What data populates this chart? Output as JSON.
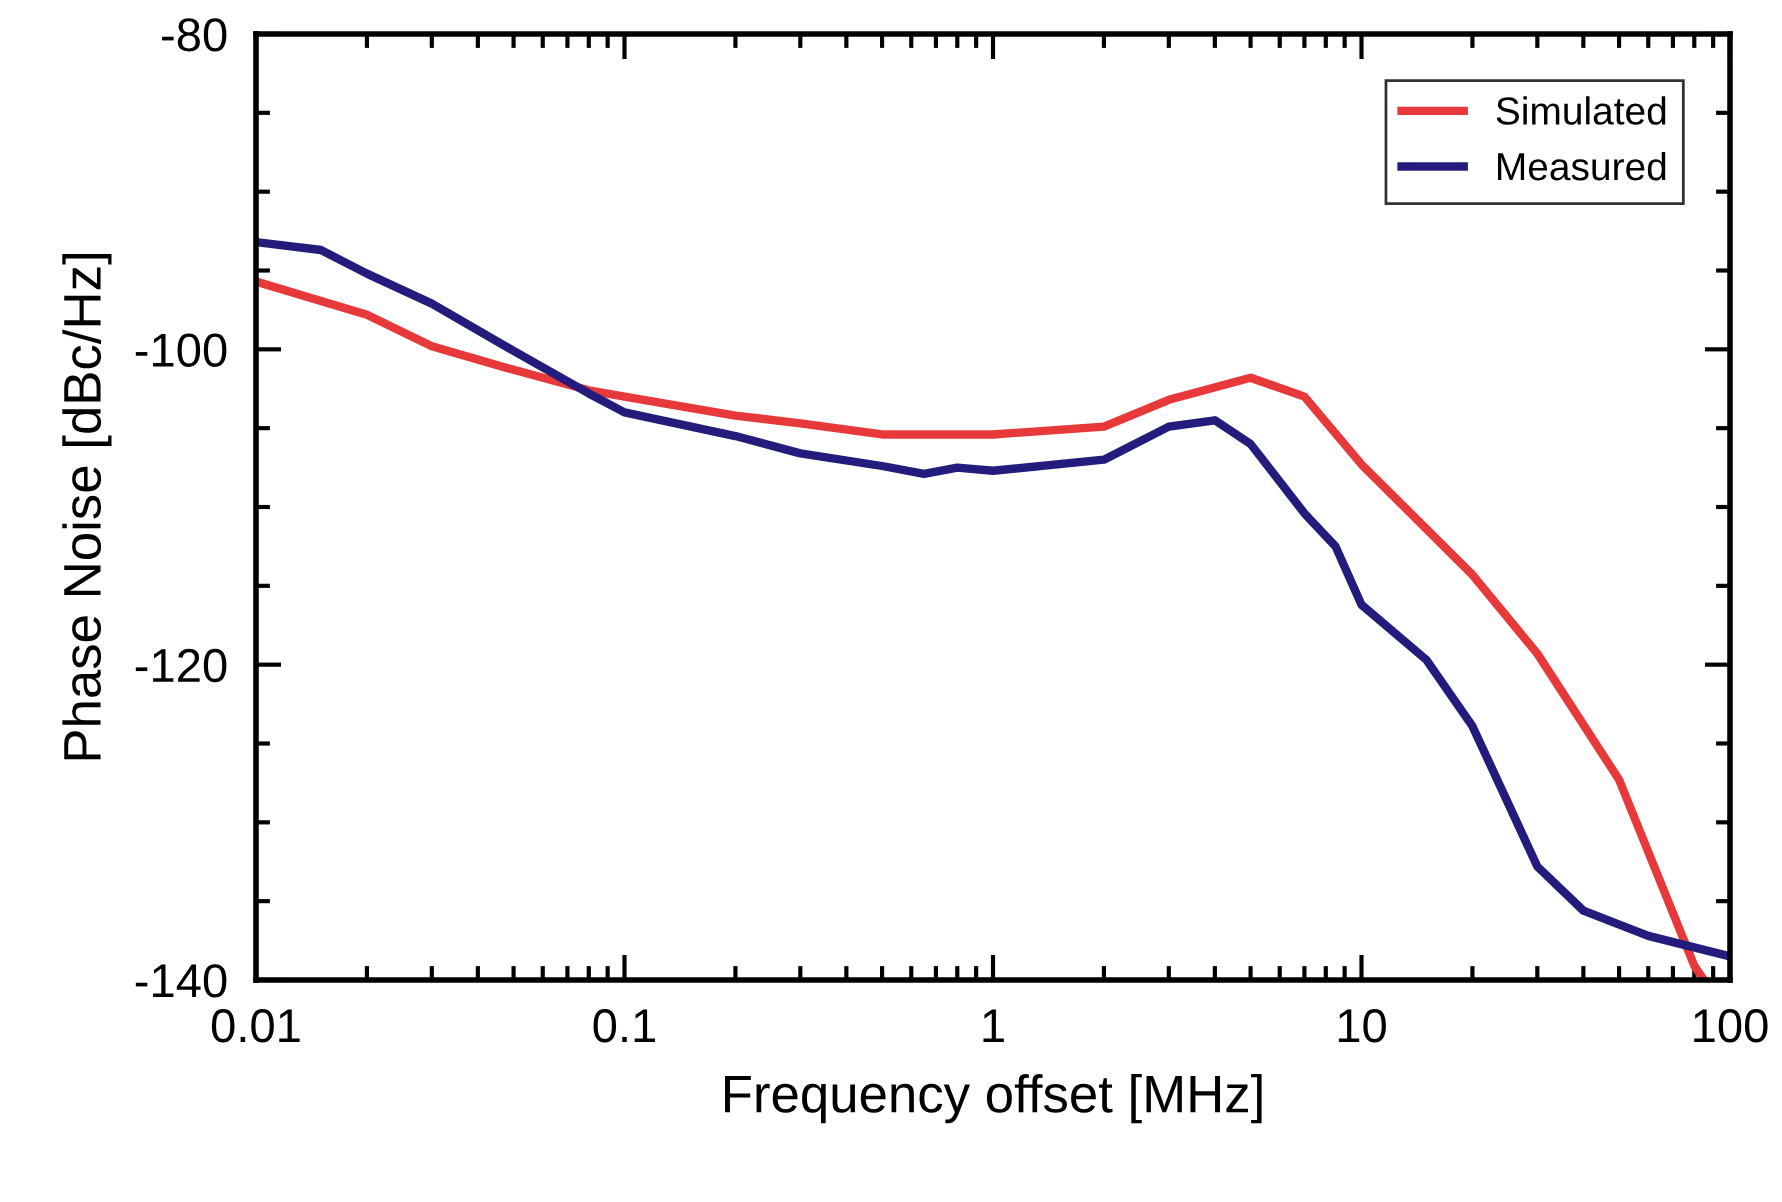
{
  "chart_data": {
    "type": "line",
    "xlabel": "Frequency offset [MHz]",
    "ylabel": "Phase Noise [dBc/Hz]",
    "log": "x",
    "xlim": [
      0.01,
      100
    ],
    "xticks": [
      0.01,
      0.1,
      1,
      10,
      100
    ],
    "ylim": [
      -140,
      -80
    ],
    "yticks": [
      -140,
      -120,
      -100,
      -80
    ],
    "grid": false,
    "legend": "top right",
    "marker": "none",
    "line_style": "solid",
    "series": [
      {
        "name": "Simulated",
        "color": "#e8393a",
        "x": [
          0.01,
          0.02,
          0.03,
          0.05,
          0.08,
          0.1,
          0.2,
          0.3,
          0.5,
          1,
          2,
          3,
          5,
          7,
          10,
          20,
          30,
          50,
          80,
          85
        ],
        "values": [
          -95.7,
          -97.8,
          -99.8,
          -101.3,
          -102.6,
          -103.0,
          -104.2,
          -104.7,
          -105.4,
          -105.4,
          -104.9,
          -103.2,
          -101.8,
          -103.0,
          -107.3,
          -114.3,
          -119.3,
          -127.3,
          -139.1,
          -140
        ]
      },
      {
        "name": "Measured",
        "color": "#231c7c",
        "x": [
          0.01,
          0.015,
          0.02,
          0.03,
          0.05,
          0.08,
          0.1,
          0.2,
          0.3,
          0.5,
          0.65,
          0.8,
          1,
          2,
          3,
          4,
          5,
          7,
          8.5,
          10,
          15,
          20,
          30,
          40,
          60,
          100
        ],
        "values": [
          -93.2,
          -93.7,
          -95.2,
          -97.1,
          -100.1,
          -102.8,
          -104.0,
          -105.5,
          -106.6,
          -107.4,
          -107.9,
          -107.5,
          -107.7,
          -107.0,
          -104.9,
          -104.5,
          -106.0,
          -110.4,
          -112.5,
          -116.2,
          -119.7,
          -123.9,
          -132.8,
          -135.6,
          -137.2,
          -138.5
        ]
      }
    ]
  }
}
